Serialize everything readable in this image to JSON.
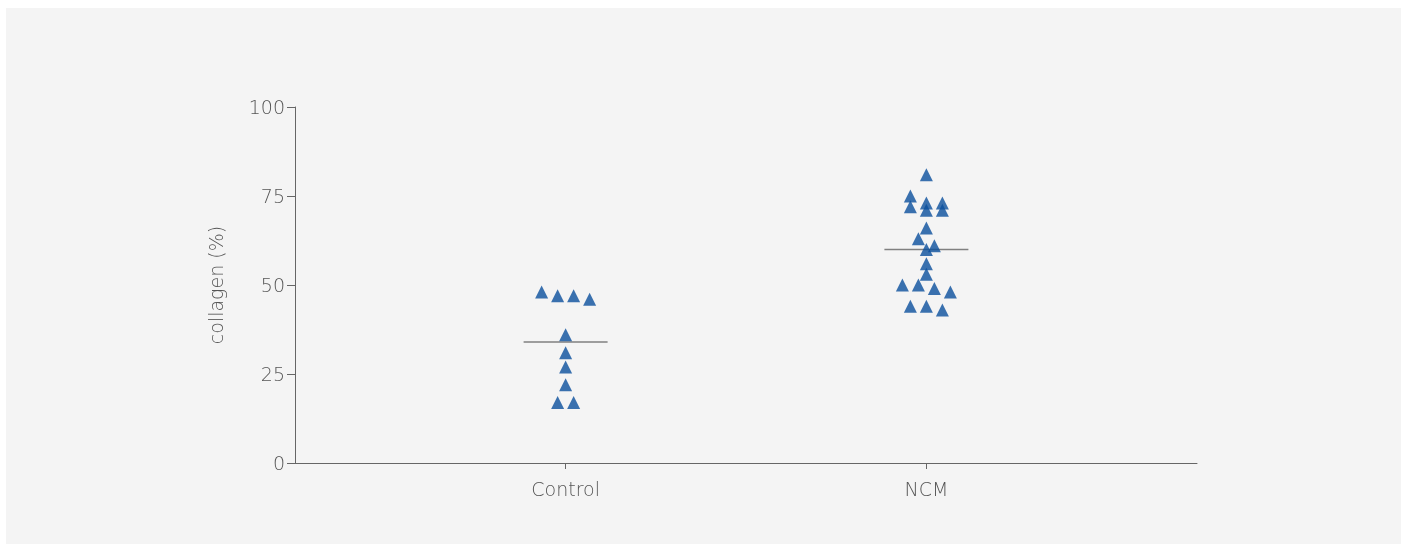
{
  "chart_data": {
    "type": "scatter",
    "ylabel": "collagen (%)",
    "categories": [
      null,
      "Control",
      null,
      "NCM",
      null
    ],
    "ylim": [
      0,
      100
    ],
    "yticks": [
      0,
      25,
      50,
      75,
      100
    ],
    "grid": false,
    "series": [
      {
        "type": "scatter",
        "marker": "triangle",
        "color": "#0a4f9c",
        "x": [
          "Control",
          "Control",
          "Control",
          "Control",
          "Control",
          "Control",
          "Control",
          "Control",
          "Control",
          "Control",
          "NCM",
          "NCM",
          "NCM",
          "NCM",
          "NCM",
          "NCM",
          "NCM",
          "NCM",
          "NCM",
          "NCM",
          "NCM",
          "NCM",
          "NCM",
          "NCM",
          "NCM",
          "NCM",
          "NCM",
          "NCM",
          "NCM",
          "NCM"
        ],
        "values": [
          47,
          46,
          47,
          48,
          36,
          31,
          27,
          22,
          17,
          17,
          81,
          75,
          73,
          71,
          71,
          72,
          73,
          66,
          63,
          61,
          60,
          56,
          53,
          50,
          49,
          48,
          50,
          44,
          43,
          44
        ]
      },
      {
        "type": "box",
        "color": "#808080",
        "x": [
          "Control",
          "NCM"
        ],
        "boxes": [
          {
            "low": 34,
            "q1": 34,
            "median": 34,
            "q3": 34,
            "high": 34
          },
          {
            "low": 60,
            "q1": 60,
            "median": 60,
            "q3": 60,
            "high": 60
          }
        ]
      }
    ]
  }
}
